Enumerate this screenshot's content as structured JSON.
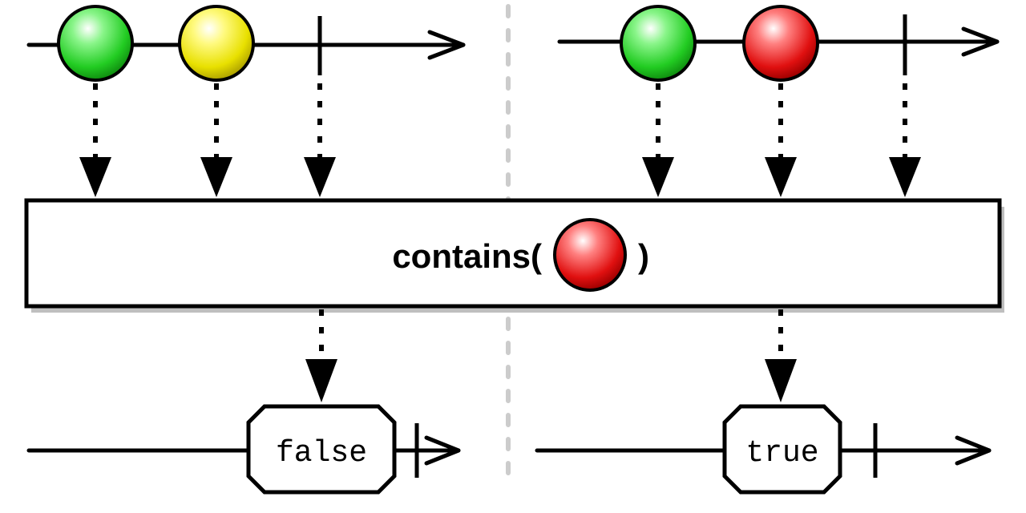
{
  "colors": {
    "green": "#22cc22",
    "yellow": "#e8e000",
    "red": "#e01010",
    "line": "#000000",
    "divider": "#cccccc"
  },
  "operator": {
    "prefix": "contains(",
    "suffix": ")",
    "argument_marble": "red"
  },
  "panels": [
    {
      "input_marbles": [
        "green",
        "yellow"
      ],
      "input_completes": true,
      "output_value": "false",
      "output_completes": true
    },
    {
      "input_marbles": [
        "green",
        "red"
      ],
      "input_completes": true,
      "output_value": "true",
      "output_completes": true
    }
  ]
}
